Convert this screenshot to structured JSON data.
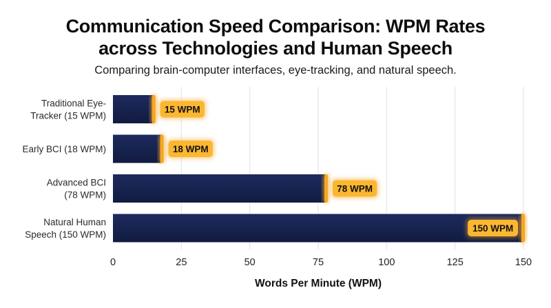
{
  "chart_data": {
    "type": "bar",
    "orientation": "horizontal",
    "title_lines": [
      "Communication Speed Comparison: WPM Rates",
      "across Technologies and Human Speech"
    ],
    "subtitle": "Comparing brain-computer interfaces, eye-tracking, and natural speech.",
    "categories": [
      [
        "Traditional Eye-",
        "Tracker (15 WPM)"
      ],
      [
        "Early BCI (18 WPM)"
      ],
      [
        "Advanced BCI",
        "(78 WPM)"
      ],
      [
        "Natural Human",
        "Speech (150 WPM)"
      ]
    ],
    "values": [
      15,
      18,
      78,
      150
    ],
    "value_labels": [
      "15 WPM",
      "18 WPM",
      "78 WPM",
      "150 WPM"
    ],
    "xlabel": "Words Per Minute (WPM)",
    "xlim": [
      0,
      150
    ],
    "xticks": [
      0,
      25,
      50,
      75,
      100,
      125,
      150
    ],
    "grid": "vertical",
    "colors": {
      "bar": "#17234f",
      "accent": "#f5a623",
      "label_bg": "#fcb731",
      "grid": "#e2e2e2"
    }
  }
}
